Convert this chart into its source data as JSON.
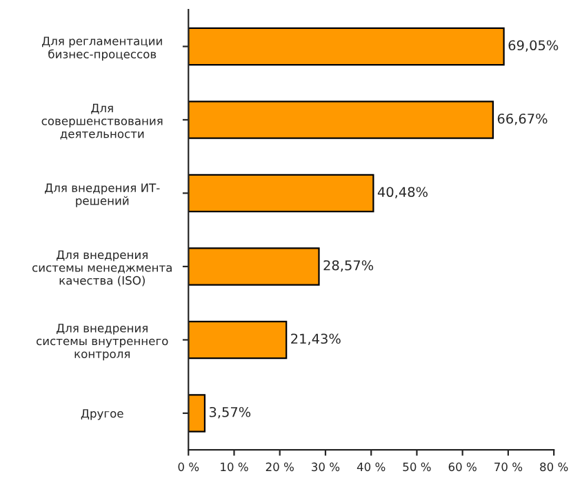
{
  "chart_data": {
    "type": "bar",
    "orientation": "horizontal",
    "categories": [
      "Для регламентации\nбизнес-процессов",
      "Для\nсовершенствования\nдеятельности",
      "Для внедрения ИТ-\nрешений",
      "Для внедрения\nсистемы менеджмента\nкачества (ISO)",
      "Для внедрения\nсистемы внутреннего\nконтроля",
      "Другое"
    ],
    "values": [
      69.05,
      66.67,
      40.48,
      28.57,
      21.43,
      3.57
    ],
    "value_labels": [
      "69,05%",
      "66,67%",
      "40,48%",
      "28,57%",
      "21,43%",
      "3,57%"
    ],
    "color": "#ff9900",
    "xlim": [
      0,
      80
    ],
    "xticks": [
      {
        "value": 0,
        "label": "0 %"
      },
      {
        "value": 10,
        "label": "10 %"
      },
      {
        "value": 20,
        "label": "20 %"
      },
      {
        "value": 30,
        "label": "30 %"
      },
      {
        "value": 40,
        "label": "40 %"
      },
      {
        "value": 50,
        "label": "50 %"
      },
      {
        "value": 60,
        "label": "60 %"
      },
      {
        "value": 70,
        "label": "70 %"
      },
      {
        "value": 80,
        "label": "80 %"
      }
    ],
    "grid": false,
    "legend": false
  }
}
